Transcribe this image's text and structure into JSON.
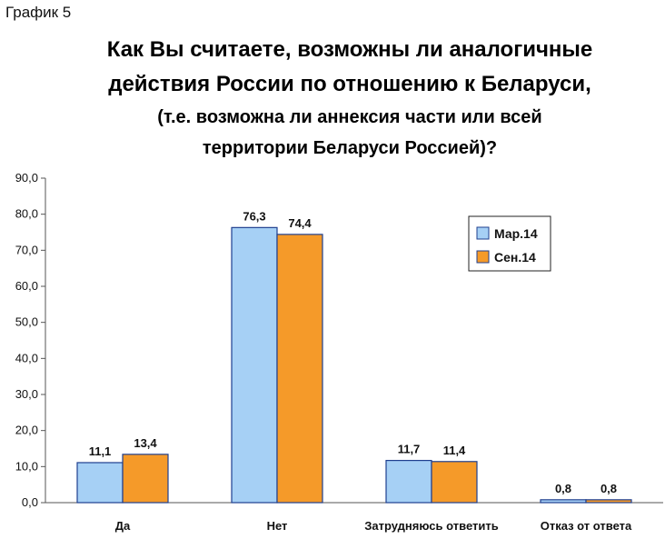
{
  "figure_label": "График 5",
  "chart_data": {
    "type": "bar",
    "title_lines": [
      "Как Вы считаете, возможны ли аналогичные",
      "действия России по отношению к Беларуси,"
    ],
    "subtitle_lines": [
      "(т.е. возможна ли аннексия части или всей",
      "территории Беларуси Россией)?"
    ],
    "categories": [
      "Да",
      "Нет",
      "Затрудняюсь ответить",
      "Отказ от ответа"
    ],
    "series": [
      {
        "name": "Мар.14",
        "values": [
          11.1,
          76.3,
          11.7,
          0.8
        ],
        "labels": [
          "11,1",
          "76,3",
          "11,7",
          "0,8"
        ],
        "color": "#a6d0f5"
      },
      {
        "name": "Сен.14",
        "values": [
          13.4,
          74.4,
          11.4,
          0.8
        ],
        "labels": [
          "13,4",
          "74,4",
          "11,4",
          "0,8"
        ],
        "color": "#f59a29"
      }
    ],
    "ylim": [
      0,
      90
    ],
    "yticks": [
      0,
      10,
      20,
      30,
      40,
      50,
      60,
      70,
      80,
      90
    ],
    "ytick_labels": [
      "0,0",
      "10,0",
      "20,0",
      "30,0",
      "40,0",
      "50,0",
      "60,0",
      "70,0",
      "80,0",
      "90,0"
    ],
    "grid": false,
    "legend_position": "top-right"
  }
}
